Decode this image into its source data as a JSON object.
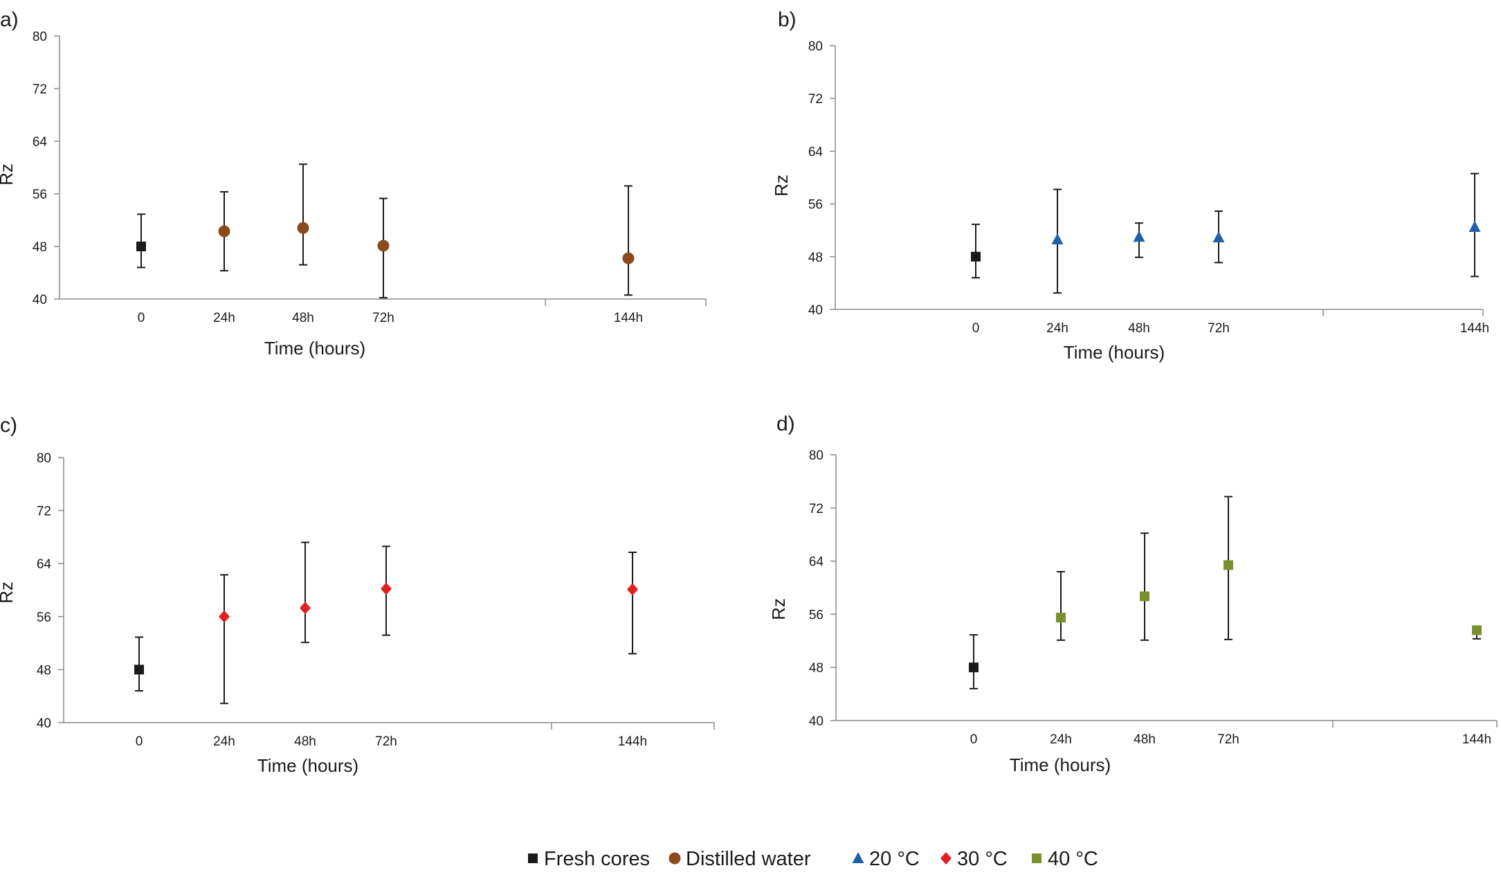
{
  "colors": {
    "fresh_cores": "#1a1a1a",
    "distilled_water": "#8b4a1c",
    "c20": "#1f5fa8",
    "c30": "#e02020",
    "c40": "#7a8f2e",
    "axis": "#8a8a8a",
    "errorbar": "#1a1a1a"
  },
  "legend": [
    {
      "label": "Fresh cores",
      "marker": "square",
      "color_key": "fresh_cores"
    },
    {
      "label": "Distilled water",
      "marker": "circle",
      "color_key": "distilled_water"
    },
    {
      "label": "20 °C",
      "marker": "triangle",
      "color_key": "c20"
    },
    {
      "label": "30 °C",
      "marker": "diamond",
      "color_key": "c30"
    },
    {
      "label": "40 °C",
      "marker": "square",
      "color_key": "c40"
    }
  ],
  "chart_data": [
    {
      "panel": "a)",
      "type": "scatter",
      "xlabel": "Time (hours)",
      "ylabel": "Rz",
      "ylim": [
        40,
        80
      ],
      "yticks": [
        "40",
        "48",
        "56",
        "64",
        "72",
        "80"
      ],
      "x_categories": [
        "0",
        "24h",
        "48h",
        "72h",
        "144h"
      ],
      "series": [
        {
          "name": "Fresh cores",
          "color_key": "fresh_cores",
          "marker": "square",
          "points": [
            {
              "x": "0",
              "y": 48.0,
              "low": 44.8,
              "high": 52.9
            }
          ]
        },
        {
          "name": "Distilled water",
          "color_key": "distilled_water",
          "marker": "circle",
          "points": [
            {
              "x": "24h",
              "y": 50.3,
              "low": 44.3,
              "high": 56.3
            },
            {
              "x": "48h",
              "y": 50.8,
              "low": 45.2,
              "high": 60.5
            },
            {
              "x": "72h",
              "y": 48.1,
              "low": 40.2,
              "high": 55.3
            },
            {
              "x": "144h",
              "y": 46.2,
              "low": 40.6,
              "high": 57.2
            }
          ]
        }
      ]
    },
    {
      "panel": "b)",
      "type": "scatter",
      "xlabel": "Time (hours)",
      "ylabel": "Rz",
      "ylim": [
        40,
        80
      ],
      "yticks": [
        "40",
        "48",
        "56",
        "64",
        "72",
        "80"
      ],
      "x_categories": [
        "0",
        "24h",
        "48h",
        "72h",
        "144h"
      ],
      "series": [
        {
          "name": "Fresh cores",
          "color_key": "fresh_cores",
          "marker": "square",
          "points": [
            {
              "x": "0",
              "y": 48.0,
              "low": 44.8,
              "high": 52.9
            }
          ]
        },
        {
          "name": "20 °C",
          "color_key": "c20",
          "marker": "triangle",
          "points": [
            {
              "x": "24h",
              "y": 50.6,
              "low": 42.5,
              "high": 58.2
            },
            {
              "x": "48h",
              "y": 51.0,
              "low": 47.9,
              "high": 53.1
            },
            {
              "x": "72h",
              "y": 50.9,
              "low": 47.1,
              "high": 54.9
            },
            {
              "x": "144h",
              "y": 52.5,
              "low": 45.0,
              "high": 60.6
            }
          ]
        }
      ]
    },
    {
      "panel": "c)",
      "type": "scatter",
      "xlabel": "Time (hours)",
      "ylabel": "Rz",
      "ylim": [
        40,
        80
      ],
      "yticks": [
        "40",
        "48",
        "56",
        "64",
        "72",
        "80"
      ],
      "x_categories": [
        "0",
        "24h",
        "48h",
        "72h",
        "144h"
      ],
      "series": [
        {
          "name": "Fresh cores",
          "color_key": "fresh_cores",
          "marker": "square",
          "points": [
            {
              "x": "0",
              "y": 48.0,
              "low": 44.8,
              "high": 52.9
            }
          ]
        },
        {
          "name": "30 °C",
          "color_key": "c30",
          "marker": "diamond",
          "points": [
            {
              "x": "24h",
              "y": 56.0,
              "low": 42.9,
              "high": 62.3
            },
            {
              "x": "48h",
              "y": 57.3,
              "low": 52.1,
              "high": 67.2
            },
            {
              "x": "72h",
              "y": 60.2,
              "low": 53.2,
              "high": 66.6
            },
            {
              "x": "144h",
              "y": 60.1,
              "low": 50.4,
              "high": 65.7
            }
          ]
        }
      ]
    },
    {
      "panel": "d)",
      "type": "scatter",
      "xlabel": "Time (hours)",
      "ylabel": "Rz",
      "ylim": [
        40,
        80
      ],
      "yticks": [
        "40",
        "48",
        "56",
        "64",
        "72",
        "80"
      ],
      "x_categories": [
        "0",
        "24h",
        "48h",
        "72h",
        "144h"
      ],
      "series": [
        {
          "name": "Fresh cores",
          "color_key": "fresh_cores",
          "marker": "square",
          "points": [
            {
              "x": "0",
              "y": 48.0,
              "low": 44.8,
              "high": 52.9
            }
          ]
        },
        {
          "name": "40 °C",
          "color_key": "c40",
          "marker": "square",
          "points": [
            {
              "x": "24h",
              "y": 55.5,
              "low": 52.1,
              "high": 62.4
            },
            {
              "x": "48h",
              "y": 58.7,
              "low": 52.1,
              "high": 68.2
            },
            {
              "x": "72h",
              "y": 63.4,
              "low": 52.2,
              "high": 73.7
            },
            {
              "x": "144h",
              "y": 53.6,
              "low": 52.3,
              "high": 54.1
            }
          ]
        }
      ]
    }
  ]
}
